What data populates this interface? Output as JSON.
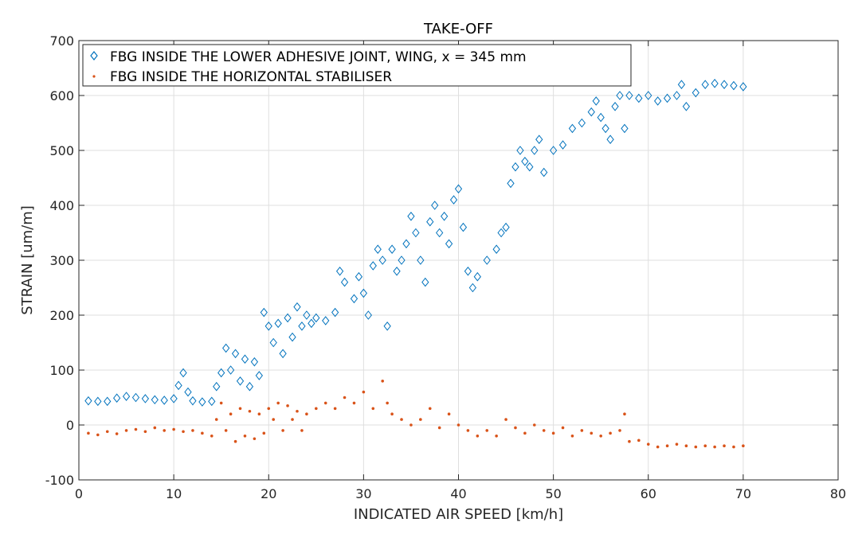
{
  "chart_data": {
    "type": "scatter",
    "title": "TAKE-OFF",
    "xlabel": "INDICATED AIR SPEED [km/h]",
    "ylabel": "STRAIN [um/m]",
    "xlim": [
      0,
      80
    ],
    "ylim": [
      -100,
      700
    ],
    "xticks": [
      0,
      10,
      20,
      30,
      40,
      50,
      60,
      70,
      80
    ],
    "yticks": [
      -100,
      0,
      100,
      200,
      300,
      400,
      500,
      600,
      700
    ],
    "grid": true,
    "legend_position": "top-left",
    "series": [
      {
        "name": "FBG INSIDE THE LOWER ADHESIVE JOINT, WING, x = 345 mm",
        "marker": "diamond-open",
        "color": "#0072BD",
        "points": [
          [
            1,
            44
          ],
          [
            2,
            43
          ],
          [
            3,
            43
          ],
          [
            4,
            49
          ],
          [
            5,
            52
          ],
          [
            6,
            50
          ],
          [
            7,
            48
          ],
          [
            8,
            46
          ],
          [
            9,
            45
          ],
          [
            10,
            48
          ],
          [
            10.5,
            72
          ],
          [
            11,
            95
          ],
          [
            11.5,
            60
          ],
          [
            12,
            44
          ],
          [
            13,
            42
          ],
          [
            14,
            43
          ],
          [
            14.5,
            70
          ],
          [
            15,
            95
          ],
          [
            15.5,
            140
          ],
          [
            16,
            100
          ],
          [
            16.5,
            130
          ],
          [
            17,
            80
          ],
          [
            17.5,
            120
          ],
          [
            18,
            70
          ],
          [
            18.5,
            115
          ],
          [
            19,
            90
          ],
          [
            19.5,
            205
          ],
          [
            20,
            180
          ],
          [
            20.5,
            150
          ],
          [
            21,
            185
          ],
          [
            21.5,
            130
          ],
          [
            22,
            195
          ],
          [
            22.5,
            160
          ],
          [
            23,
            215
          ],
          [
            23.5,
            180
          ],
          [
            24,
            200
          ],
          [
            24.5,
            185
          ],
          [
            25,
            195
          ],
          [
            26,
            190
          ],
          [
            27,
            205
          ],
          [
            27.5,
            280
          ],
          [
            28,
            260
          ],
          [
            29,
            230
          ],
          [
            29.5,
            270
          ],
          [
            30,
            240
          ],
          [
            30.5,
            200
          ],
          [
            31,
            290
          ],
          [
            31.5,
            320
          ],
          [
            32,
            300
          ],
          [
            32.5,
            180
          ],
          [
            33,
            320
          ],
          [
            33.5,
            280
          ],
          [
            34,
            300
          ],
          [
            34.5,
            330
          ],
          [
            35,
            380
          ],
          [
            35.5,
            350
          ],
          [
            36,
            300
          ],
          [
            36.5,
            260
          ],
          [
            37,
            370
          ],
          [
            37.5,
            400
          ],
          [
            38,
            350
          ],
          [
            38.5,
            380
          ],
          [
            39,
            330
          ],
          [
            39.5,
            410
          ],
          [
            40,
            430
          ],
          [
            40.5,
            360
          ],
          [
            41,
            280
          ],
          [
            41.5,
            250
          ],
          [
            42,
            270
          ],
          [
            43,
            300
          ],
          [
            44,
            320
          ],
          [
            44.5,
            350
          ],
          [
            45,
            360
          ],
          [
            45.5,
            440
          ],
          [
            46,
            470
          ],
          [
            46.5,
            500
          ],
          [
            47,
            480
          ],
          [
            47.5,
            470
          ],
          [
            48,
            500
          ],
          [
            48.5,
            520
          ],
          [
            49,
            460
          ],
          [
            50,
            500
          ],
          [
            51,
            510
          ],
          [
            52,
            540
          ],
          [
            53,
            550
          ],
          [
            54,
            570
          ],
          [
            54.5,
            590
          ],
          [
            55,
            560
          ],
          [
            55.5,
            540
          ],
          [
            56,
            520
          ],
          [
            56.5,
            580
          ],
          [
            57,
            600
          ],
          [
            57.5,
            540
          ],
          [
            58,
            600
          ],
          [
            59,
            595
          ],
          [
            60,
            600
          ],
          [
            61,
            590
          ],
          [
            62,
            595
          ],
          [
            63,
            600
          ],
          [
            63.5,
            620
          ],
          [
            64,
            580
          ],
          [
            65,
            605
          ],
          [
            66,
            620
          ],
          [
            67,
            622
          ],
          [
            68,
            620
          ],
          [
            69,
            618
          ],
          [
            70,
            616
          ]
        ]
      },
      {
        "name": "FBG INSIDE THE HORIZONTAL STABILISER",
        "marker": "point",
        "color": "#D95319",
        "points": [
          [
            1,
            -15
          ],
          [
            2,
            -18
          ],
          [
            3,
            -12
          ],
          [
            4,
            -16
          ],
          [
            5,
            -10
          ],
          [
            6,
            -8
          ],
          [
            7,
            -12
          ],
          [
            8,
            -5
          ],
          [
            9,
            -10
          ],
          [
            10,
            -8
          ],
          [
            11,
            -12
          ],
          [
            12,
            -10
          ],
          [
            13,
            -15
          ],
          [
            14,
            -20
          ],
          [
            14.5,
            10
          ],
          [
            15,
            40
          ],
          [
            15.5,
            -10
          ],
          [
            16,
            20
          ],
          [
            16.5,
            -30
          ],
          [
            17,
            30
          ],
          [
            17.5,
            -20
          ],
          [
            18,
            25
          ],
          [
            18.5,
            -25
          ],
          [
            19,
            20
          ],
          [
            19.5,
            -15
          ],
          [
            20,
            30
          ],
          [
            20.5,
            10
          ],
          [
            21,
            40
          ],
          [
            21.5,
            -10
          ],
          [
            22,
            35
          ],
          [
            22.5,
            10
          ],
          [
            23,
            25
          ],
          [
            23.5,
            -10
          ],
          [
            24,
            20
          ],
          [
            25,
            30
          ],
          [
            26,
            40
          ],
          [
            27,
            30
          ],
          [
            28,
            50
          ],
          [
            29,
            40
          ],
          [
            30,
            60
          ],
          [
            31,
            30
          ],
          [
            32,
            80
          ],
          [
            32.5,
            40
          ],
          [
            33,
            20
          ],
          [
            34,
            10
          ],
          [
            35,
            0
          ],
          [
            36,
            10
          ],
          [
            37,
            30
          ],
          [
            38,
            -5
          ],
          [
            39,
            20
          ],
          [
            40,
            0
          ],
          [
            41,
            -10
          ],
          [
            42,
            -20
          ],
          [
            43,
            -10
          ],
          [
            44,
            -20
          ],
          [
            45,
            10
          ],
          [
            46,
            -5
          ],
          [
            47,
            -15
          ],
          [
            48,
            0
          ],
          [
            49,
            -10
          ],
          [
            50,
            -15
          ],
          [
            51,
            -5
          ],
          [
            52,
            -20
          ],
          [
            53,
            -10
          ],
          [
            54,
            -15
          ],
          [
            55,
            -20
          ],
          [
            56,
            -15
          ],
          [
            57,
            -10
          ],
          [
            57.5,
            20
          ],
          [
            58,
            -30
          ],
          [
            59,
            -28
          ],
          [
            60,
            -35
          ],
          [
            61,
            -40
          ],
          [
            62,
            -38
          ],
          [
            63,
            -35
          ],
          [
            64,
            -38
          ],
          [
            65,
            -40
          ],
          [
            66,
            -38
          ],
          [
            67,
            -40
          ],
          [
            68,
            -38
          ],
          [
            69,
            -40
          ],
          [
            70,
            -38
          ]
        ]
      }
    ]
  }
}
